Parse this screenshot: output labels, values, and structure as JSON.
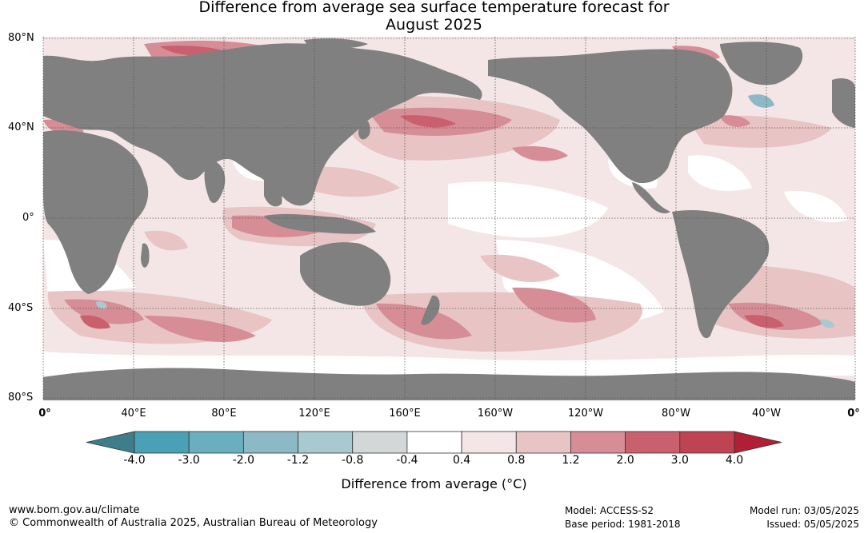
{
  "title": {
    "line1": "Difference from average sea surface temperature forecast for",
    "line2": "August 2025"
  },
  "map": {
    "lat_labels": [
      "80°N",
      "40°N",
      "0°",
      "40°S",
      "80°S"
    ],
    "lon_labels": [
      "0°",
      "40°E",
      "80°E",
      "120°E",
      "160°E",
      "160°W",
      "120°W",
      "80°W",
      "40°W",
      "0°"
    ],
    "land_color": "#808080",
    "ocean_white": "#ffffff"
  },
  "colorbar": {
    "title": "Difference from average (°C)",
    "ticks": [
      "-4.0",
      "-3.0",
      "-2.0",
      "-1.2",
      "-0.8",
      "-0.4",
      "0.4",
      "0.8",
      "1.2",
      "2.0",
      "3.0",
      "4.0"
    ],
    "colors": [
      "#3e7d8a",
      "#4aa0b4",
      "#6aafbf",
      "#8db8c5",
      "#a9c9d0",
      "#d3d7d8",
      "#ffffff",
      "#f4e6e6",
      "#e8c4c4",
      "#d68d96",
      "#c9606e",
      "#be4454",
      "#b01f35"
    ]
  },
  "footer": {
    "url": "www.bom.gov.au/climate",
    "copyright": "© Commonwealth of Australia 2025, Australian Bureau of Meteorology",
    "model": "Model: ACCESS-S2",
    "base_period": "Base period: 1981-2018",
    "model_run": "Model run: 03/05/2025",
    "issued": "Issued: 05/05/2025"
  }
}
